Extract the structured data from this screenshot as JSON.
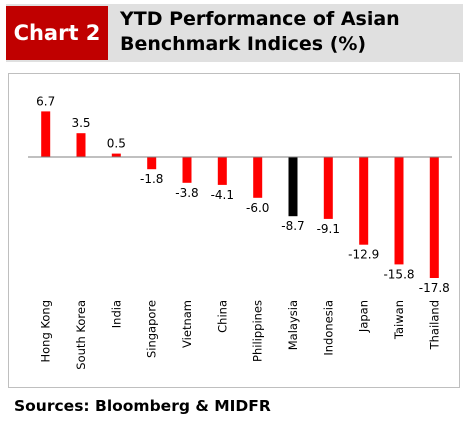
{
  "header": {
    "tag": "Chart 2",
    "title": "YTD Performance of Asian Benchmark Indices (%)"
  },
  "chart_data": {
    "type": "bar",
    "categories": [
      "Hong Kong",
      "South Korea",
      "India",
      "Singapore",
      "Vietnam",
      "China",
      "Philippines",
      "Malaysia",
      "Indonesia",
      "Japan",
      "Taiwan",
      "Thailand"
    ],
    "values": [
      6.7,
      3.5,
      0.5,
      -1.8,
      -3.8,
      -4.1,
      -6.0,
      -8.7,
      -9.1,
      -12.9,
      -15.8,
      -17.8
    ],
    "data_labels": [
      "6.7",
      "3.5",
      "0.5",
      "-1.8",
      "-3.8",
      "-4.1",
      "-6.0",
      "-8.7",
      "-9.1",
      "-12.9",
      "-15.8",
      "-17.8"
    ],
    "highlight_category": "Malaysia",
    "ylim": [
      -18,
      8
    ],
    "grid": false,
    "legend": "none",
    "colors": {
      "bar": "#ff0000",
      "highlight": "#000000",
      "axis": "#808080"
    }
  },
  "footer": {
    "source": "Sources: Bloomberg & MIDFR"
  }
}
